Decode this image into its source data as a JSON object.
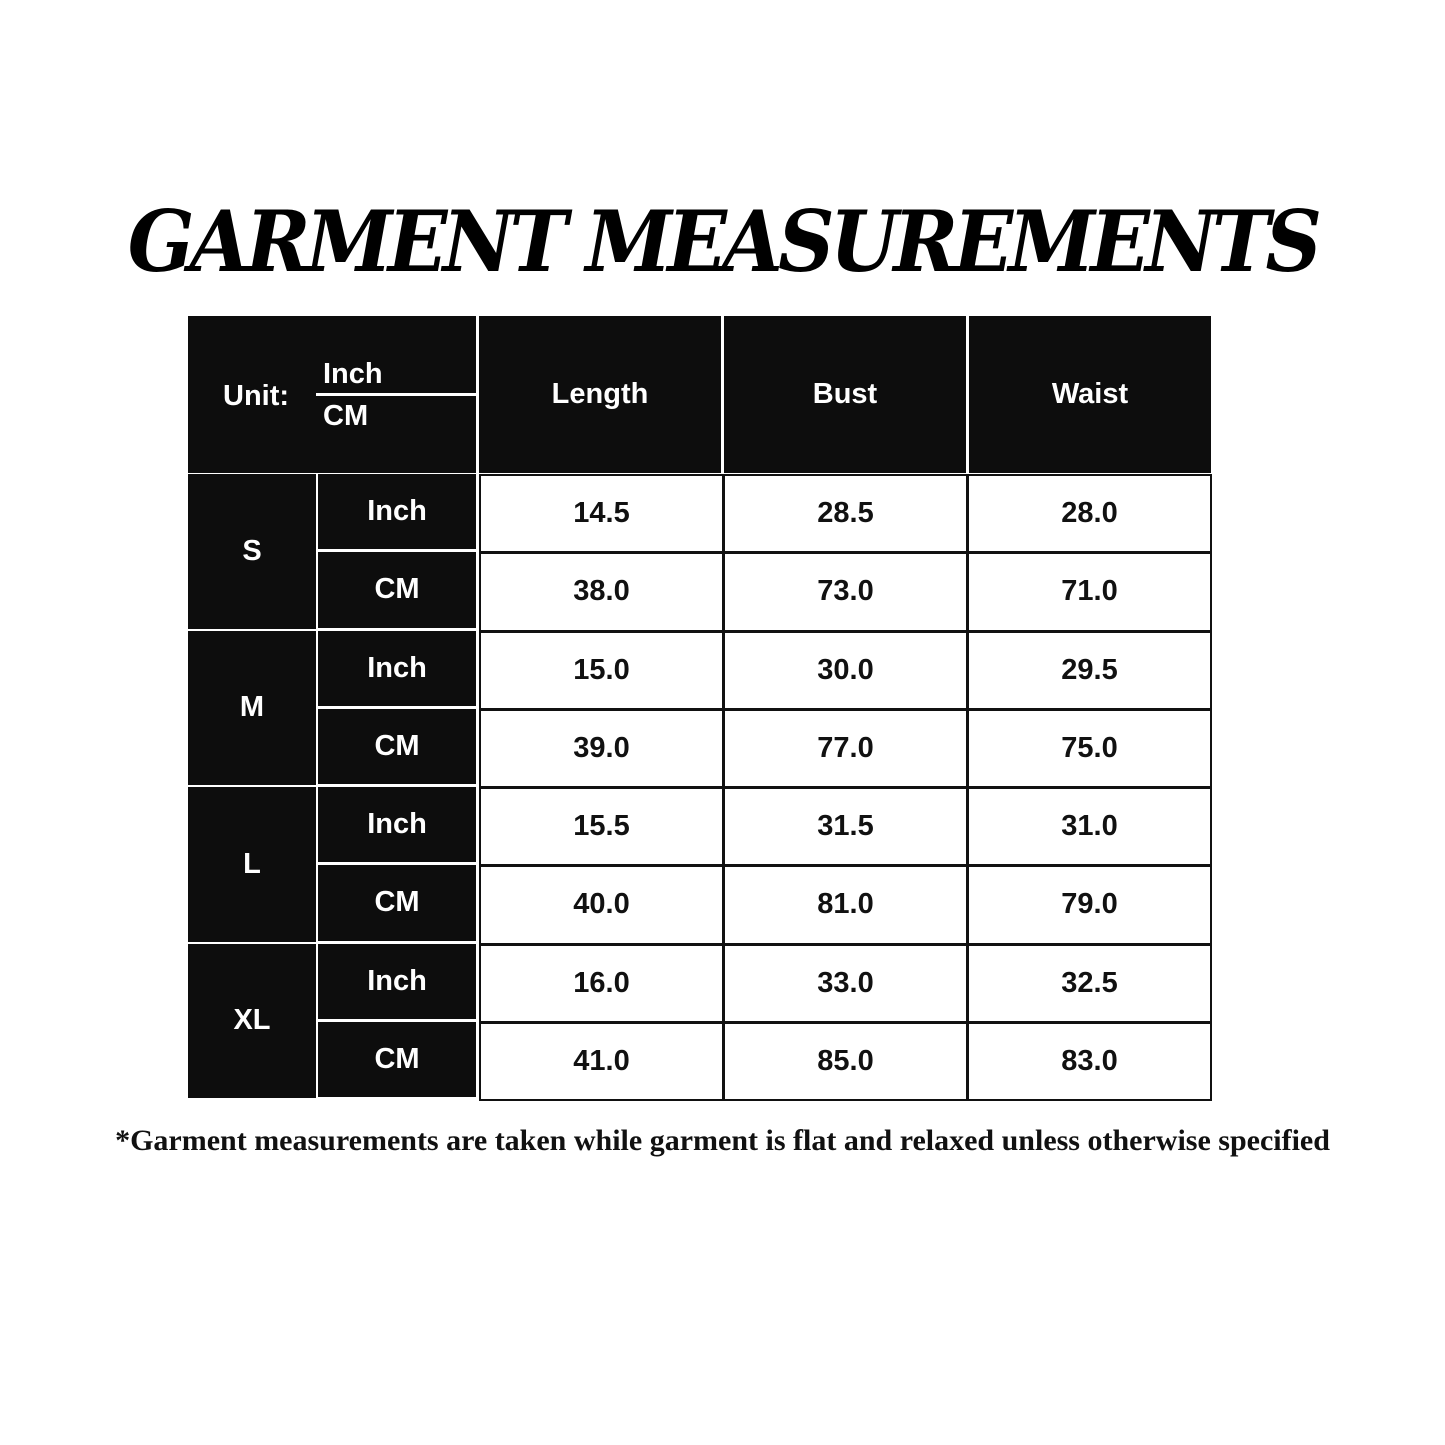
{
  "title": "GARMENT MEASUREMENTS",
  "header": {
    "unit_label": "Unit:",
    "unit_top": "Inch",
    "unit_bottom": "CM",
    "columns": [
      "Length",
      "Bust",
      "Waist"
    ]
  },
  "sizes": [
    {
      "size": "S",
      "rows": [
        {
          "unit": "Inch",
          "values": [
            "14.5",
            "28.5",
            "28.0"
          ]
        },
        {
          "unit": "CM",
          "values": [
            "38.0",
            "73.0",
            "71.0"
          ]
        }
      ]
    },
    {
      "size": "M",
      "rows": [
        {
          "unit": "Inch",
          "values": [
            "15.0",
            "30.0",
            "29.5"
          ]
        },
        {
          "unit": "CM",
          "values": [
            "39.0",
            "77.0",
            "75.0"
          ]
        }
      ]
    },
    {
      "size": "L",
      "rows": [
        {
          "unit": "Inch",
          "values": [
            "15.5",
            "31.5",
            "31.0"
          ]
        },
        {
          "unit": "CM",
          "values": [
            "40.0",
            "81.0",
            "79.0"
          ]
        }
      ]
    },
    {
      "size": "XL",
      "rows": [
        {
          "unit": "Inch",
          "values": [
            "16.0",
            "33.0",
            "32.5"
          ]
        },
        {
          "unit": "CM",
          "values": [
            "41.0",
            "85.0",
            "83.0"
          ]
        }
      ]
    }
  ],
  "footnote": "*Garment measurements are taken while garment is flat and relaxed unless otherwise specified",
  "colors": {
    "header_bg": "#0d0d0d",
    "cell_bg": "#ffffff",
    "text_dark": "#111111"
  }
}
